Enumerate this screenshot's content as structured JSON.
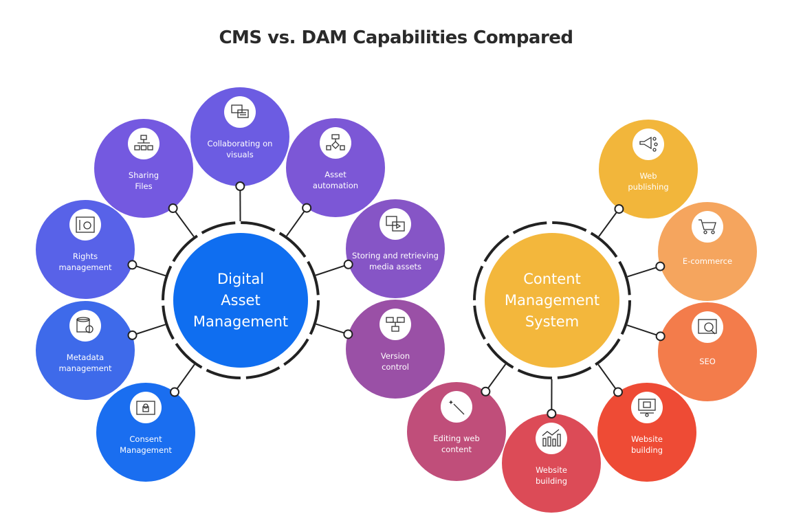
{
  "title": "CMS vs. DAM Capabilities Compared",
  "hubs": [
    {
      "id": "dam",
      "lines": [
        "Digital",
        "Asset",
        "Management"
      ],
      "color": "#0f6ef0"
    },
    {
      "id": "cms",
      "lines": [
        "Content",
        "Management",
        "System"
      ],
      "color": "#f3b73c"
    }
  ],
  "nodes": [
    {
      "hub": "dam",
      "lines": [
        "Collaborating on",
        "visuals"
      ],
      "color": "#6c5ce2",
      "icon": "chat-bubbles-icon"
    },
    {
      "hub": "dam",
      "lines": [
        "Sharing",
        "Files"
      ],
      "color": "#7459e0",
      "icon": "folder-tree-icon"
    },
    {
      "hub": "dam",
      "lines": [
        "Asset",
        "automation"
      ],
      "color": "#7c57d6",
      "icon": "flowchart-icon"
    },
    {
      "hub": "dam",
      "lines": [
        "Rights",
        "management"
      ],
      "color": "#5862e8",
      "icon": "design-tools-icon"
    },
    {
      "hub": "dam",
      "lines": [
        "Storing and retrieving",
        "media assets"
      ],
      "color": "#8655c6",
      "icon": "media-files-icon"
    },
    {
      "hub": "dam",
      "lines": [
        "Metadata",
        "management"
      ],
      "color": "#3e6aea",
      "icon": "database-gear-icon"
    },
    {
      "hub": "dam",
      "lines": [
        "Version",
        "control"
      ],
      "color": "#9a50a6",
      "icon": "versions-icon"
    },
    {
      "hub": "dam",
      "lines": [
        "Consent",
        "Management"
      ],
      "color": "#1a6ef0",
      "icon": "locked-folder-icon"
    },
    {
      "hub": "cms",
      "lines": [
        "Web",
        "publishing"
      ],
      "color": "#f2b63b",
      "icon": "megaphone-icon"
    },
    {
      "hub": "cms",
      "lines": [
        "E-commerce"
      ],
      "color": "#f5a55e",
      "icon": "shopping-cart-icon"
    },
    {
      "hub": "cms",
      "lines": [
        "SEO"
      ],
      "color": "#f37c4b",
      "icon": "seo-analytics-icon"
    },
    {
      "hub": "cms",
      "lines": [
        "Website",
        "building"
      ],
      "color": "#ee4b35",
      "icon": "sitemap-icon"
    },
    {
      "hub": "cms",
      "lines": [
        "Website",
        "building"
      ],
      "color": "#dc4b57",
      "icon": "growth-chart-icon"
    },
    {
      "hub": "cms",
      "lines": [
        "Editing web",
        "content"
      ],
      "color": "#c04e7a",
      "icon": "magic-wand-icon"
    }
  ]
}
